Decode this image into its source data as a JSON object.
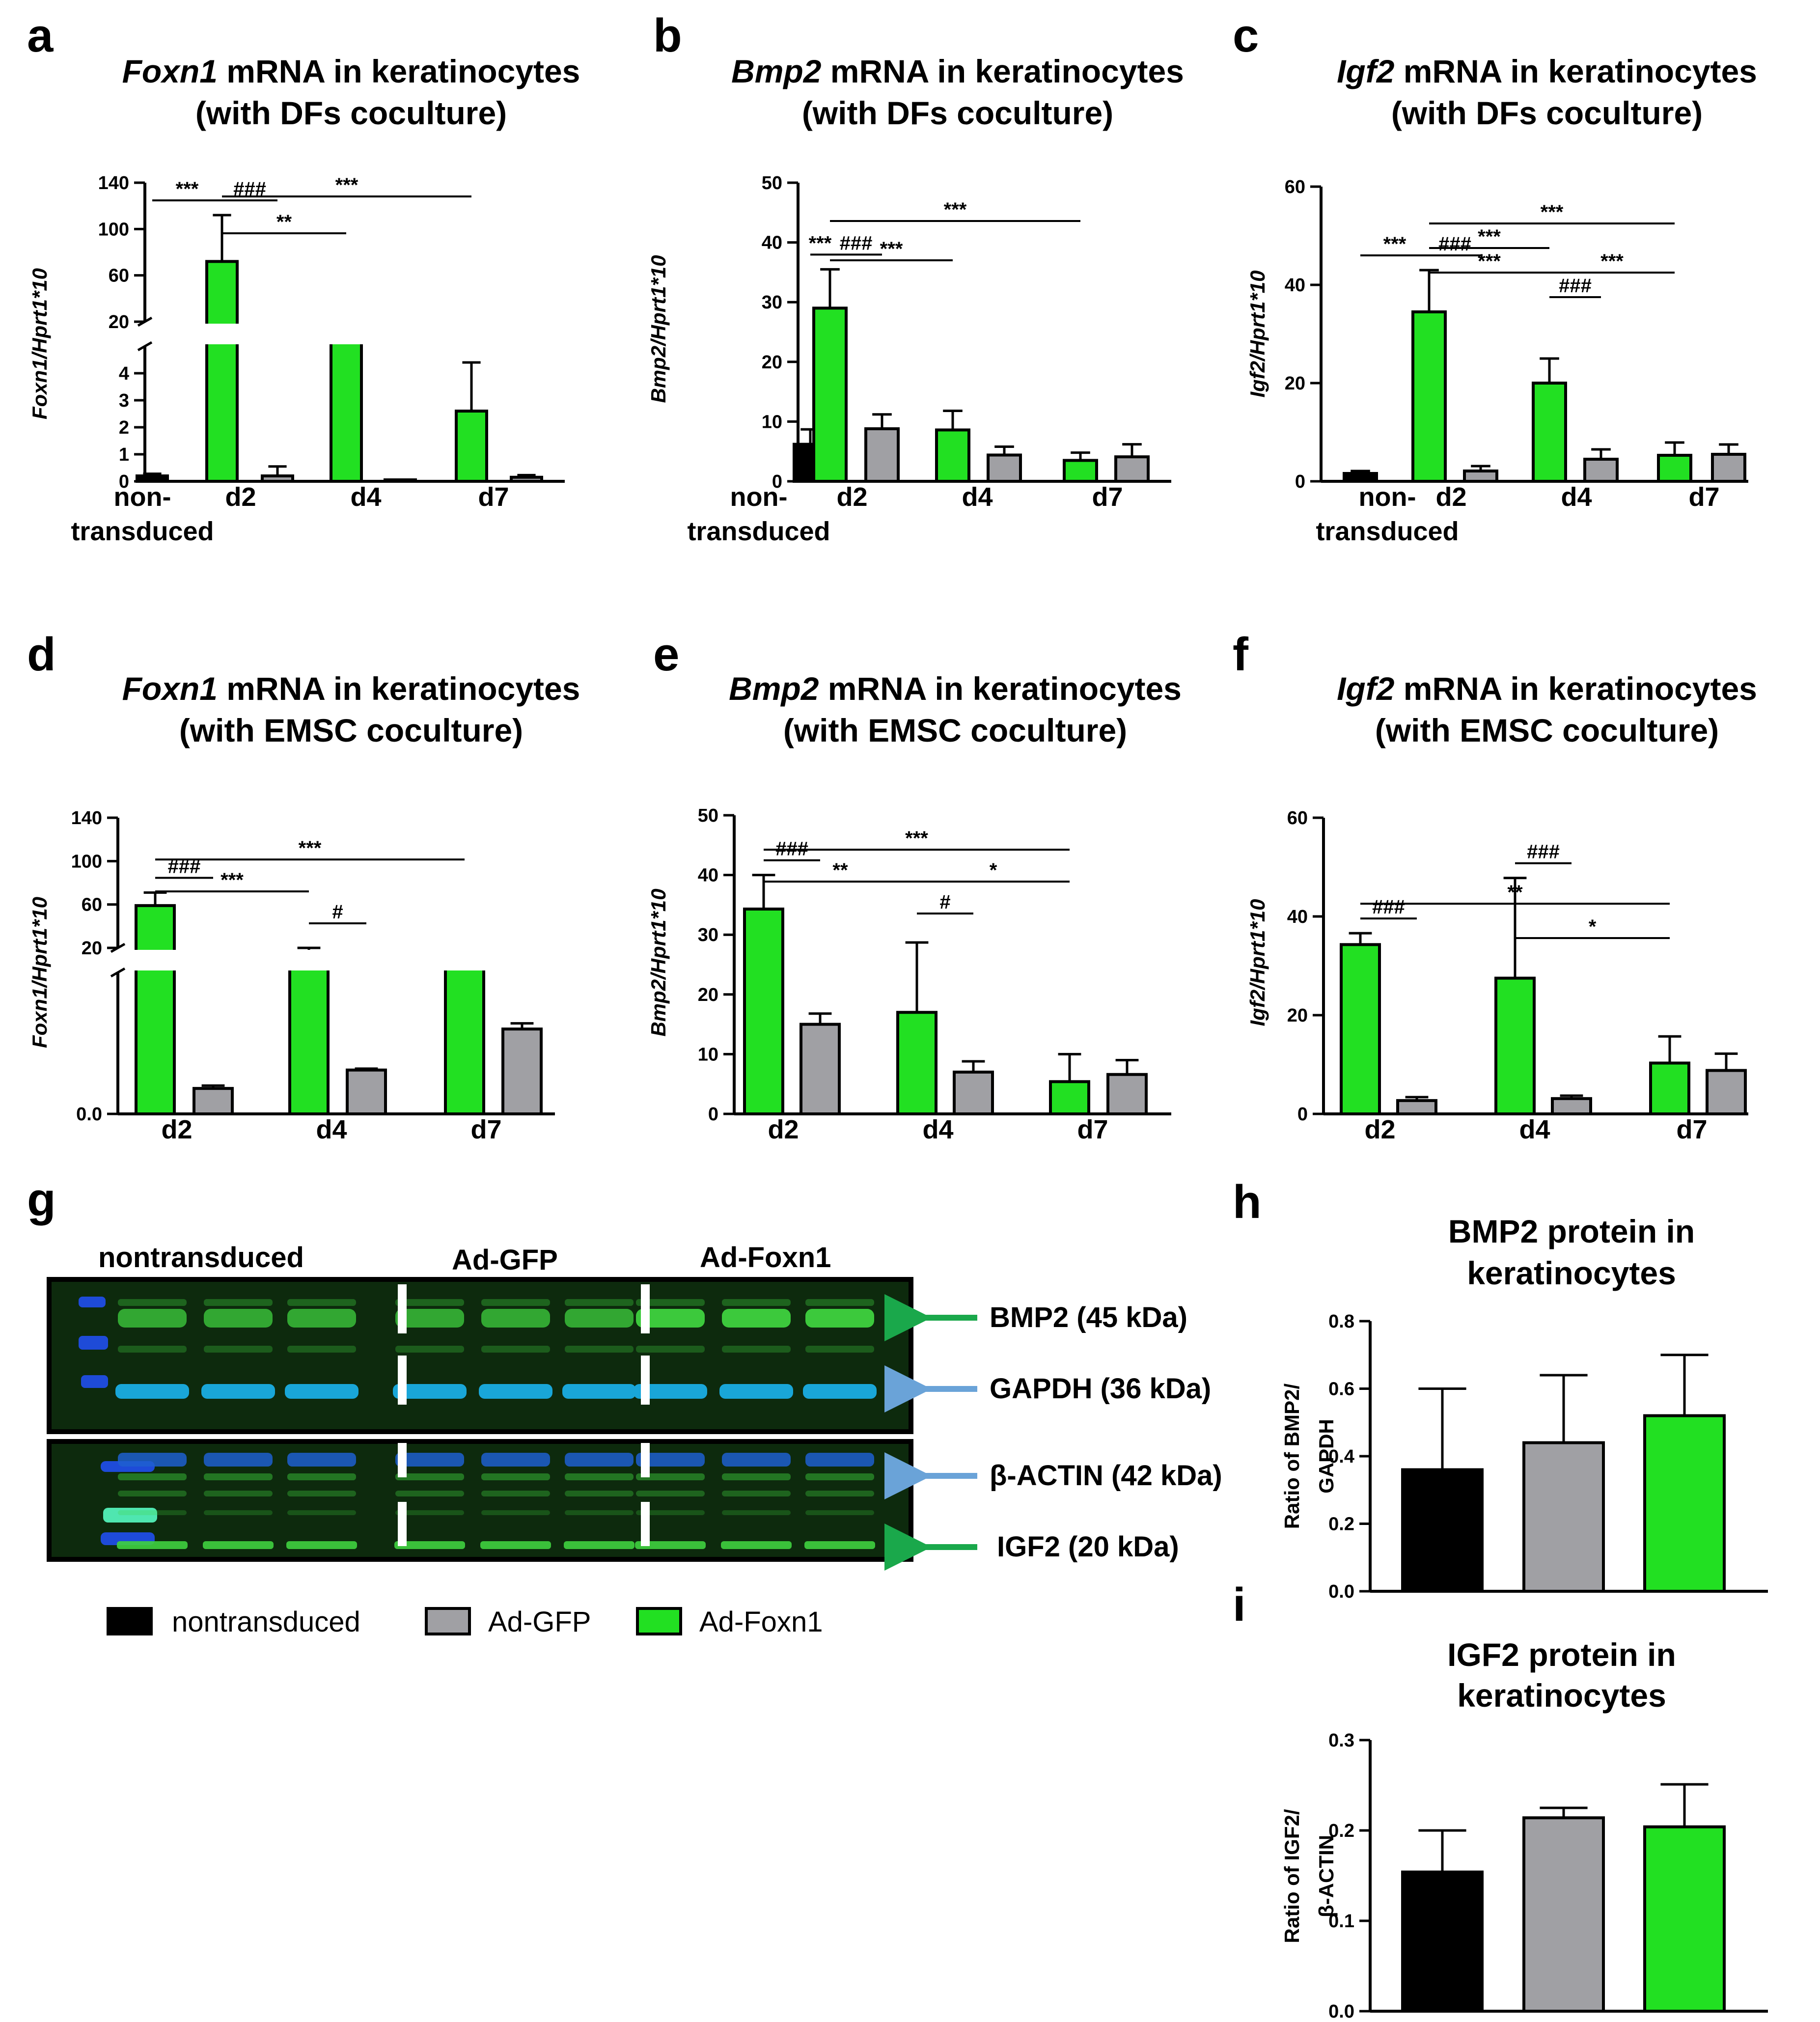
{
  "colors": {
    "nontransduced": "#000000",
    "ad_gfp": "#a0a0a4",
    "ad_foxn1": "#22e022",
    "green_arrow": "#1aa84b",
    "blue_arrow": "#6aa3d8",
    "blot_bg": "#0d2a0d",
    "band_green": "#3fd23f",
    "band_cyan": "#19a6d8",
    "ladder_blue": "#1e4bd8"
  },
  "legend": {
    "items": [
      {
        "label": "nontransduced",
        "color_key": "nontransduced"
      },
      {
        "label": "Ad-GFP",
        "color_key": "ad_gfp"
      },
      {
        "label": "Ad-Foxn1",
        "color_key": "ad_foxn1"
      }
    ]
  },
  "chart_data": [
    {
      "id": "a",
      "panel_label": "a",
      "type": "bar",
      "title_gene": "Foxn1",
      "title_rest": " mRNA in keratinocytes",
      "title_line2": "(with DFs coculture)",
      "ylabel": "Foxn1/Hprt1*10",
      "broken_axis": true,
      "ylim_lower": [
        0,
        5
      ],
      "ylim_upper": [
        0,
        140
      ],
      "yticks_lower": [
        0,
        1,
        2,
        3,
        4
      ],
      "yticks_upper": [
        20,
        60,
        100,
        140
      ],
      "ytick_labels_lower": [
        "0",
        "1",
        "2",
        "3",
        "4"
      ],
      "ytick_labels_upper": [
        "20",
        "60",
        "100",
        "140"
      ],
      "groups": [
        "non-\ntransduced",
        "d2",
        "d4",
        "d7"
      ],
      "group_labels": [
        [
          "non-",
          "transduced"
        ],
        [
          "d2"
        ],
        [
          "d4"
        ],
        [
          "d7"
        ]
      ],
      "bars": [
        {
          "group": 0,
          "series": "nontransduced",
          "value": 0.2,
          "error": 0.08
        },
        {
          "group": 1,
          "series": "ad_foxn1",
          "value": 72,
          "error": 40
        },
        {
          "group": 1,
          "series": "ad_gfp",
          "value": 0.2,
          "error": 0.35
        },
        {
          "group": 2,
          "series": "ad_foxn1",
          "value": 15,
          "error": 2
        },
        {
          "group": 2,
          "series": "ad_gfp",
          "value": 0.03,
          "error": 0.01
        },
        {
          "group": 3,
          "series": "ad_foxn1",
          "value": 2.6,
          "error": 1.8
        },
        {
          "group": 3,
          "series": "ad_gfp",
          "value": 0.15,
          "error": 0.08
        }
      ],
      "annotations": [
        {
          "from_bar": 0,
          "to_bar": 1,
          "label": "***",
          "level": 0
        },
        {
          "from_bar": 1,
          "to_bar": 2,
          "label": "###",
          "level": 0
        },
        {
          "from_bar": 1,
          "to_bar": 3,
          "label": "**",
          "level": 1
        },
        {
          "from_bar": 1,
          "to_bar": 5,
          "label": "***",
          "level": 2
        }
      ]
    },
    {
      "id": "b",
      "panel_label": "b",
      "type": "bar",
      "title_gene": "Bmp2",
      "title_rest": " mRNA in keratinocytes",
      "title_line2": "(with DFs coculture)",
      "ylabel": "Bmp2/Hprt1*10",
      "broken_axis": false,
      "ylim": [
        0,
        50
      ],
      "yticks": [
        0,
        10,
        20,
        30,
        40,
        50
      ],
      "ytick_labels": [
        "0",
        "10",
        "20",
        "30",
        "40",
        "50"
      ],
      "groups": [
        "non-\ntransduced",
        "d2",
        "d4",
        "d7"
      ],
      "group_labels": [
        [
          "non-",
          "transduced"
        ],
        [
          "d2"
        ],
        [
          "d4"
        ],
        [
          "d7"
        ]
      ],
      "bars": [
        {
          "group": 0,
          "series": "nontransduced",
          "value": 6.2,
          "error": 2.5
        },
        {
          "group": 1,
          "series": "ad_foxn1",
          "value": 29,
          "error": 6.5
        },
        {
          "group": 1,
          "series": "ad_gfp",
          "value": 8.8,
          "error": 2.4
        },
        {
          "group": 2,
          "series": "ad_foxn1",
          "value": 8.6,
          "error": 3.2
        },
        {
          "group": 2,
          "series": "ad_gfp",
          "value": 4.4,
          "error": 1.4
        },
        {
          "group": 3,
          "series": "ad_foxn1",
          "value": 3.5,
          "error": 1.3
        },
        {
          "group": 3,
          "series": "ad_gfp",
          "value": 4.1,
          "error": 2.1
        }
      ],
      "annotations": [
        {
          "from_bar": 0,
          "to_bar": 1,
          "label": "***",
          "level": 0
        },
        {
          "from_bar": 1,
          "to_bar": 2,
          "label": "###",
          "level": 0
        },
        {
          "from_bar": 1,
          "to_bar": 3,
          "label": "***",
          "level": 1
        },
        {
          "from_bar": 1,
          "to_bar": 5,
          "label": "***",
          "level": 2
        }
      ]
    },
    {
      "id": "c",
      "panel_label": "c",
      "type": "bar",
      "title_gene": "Igf2",
      "title_rest": " mRNA in keratinocytes",
      "title_line2": "(with DFs coculture)",
      "ylabel": "Igf2/Hprt1*10",
      "broken_axis": false,
      "ylim": [
        0,
        60
      ],
      "yticks": [
        0,
        20,
        40,
        60
      ],
      "ytick_labels": [
        "0",
        "20",
        "40",
        "60"
      ],
      "groups": [
        "non-\ntransduced",
        "d2",
        "d4",
        "d7"
      ],
      "group_labels": [
        [
          "non-",
          "transduced"
        ],
        [
          "d2"
        ],
        [
          "d4"
        ],
        [
          "d7"
        ]
      ],
      "bars": [
        {
          "group": 0,
          "series": "nontransduced",
          "value": 1.6,
          "error": 0.5
        },
        {
          "group": 1,
          "series": "ad_foxn1",
          "value": 34.5,
          "error": 8.5
        },
        {
          "group": 1,
          "series": "ad_gfp",
          "value": 2.1,
          "error": 1.0
        },
        {
          "group": 2,
          "series": "ad_foxn1",
          "value": 20,
          "error": 5
        },
        {
          "group": 2,
          "series": "ad_gfp",
          "value": 4.5,
          "error": 2.0
        },
        {
          "group": 3,
          "series": "ad_foxn1",
          "value": 5.3,
          "error": 2.6
        },
        {
          "group": 3,
          "series": "ad_gfp",
          "value": 5.5,
          "error": 2.0
        }
      ],
      "annotations": [
        {
          "from_bar": 0,
          "to_bar": 1,
          "label": "***",
          "level": 0
        },
        {
          "from_bar": 1,
          "to_bar": 2,
          "label": "###",
          "level": 0
        },
        {
          "from_bar": 1,
          "to_bar": 3,
          "label": "***",
          "level": 1
        },
        {
          "from_bar": 1,
          "to_bar": 3,
          "label": "***",
          "level": 2
        },
        {
          "from_bar": 1,
          "to_bar": 5,
          "label": "***",
          "level": 3
        },
        {
          "from_bar": 3,
          "to_bar": 4,
          "label": "###",
          "level": 0
        },
        {
          "from_bar": 3,
          "to_bar": 5,
          "label": "***",
          "level": 1
        }
      ]
    },
    {
      "id": "d",
      "panel_label": "d",
      "type": "bar",
      "title_gene": "Foxn1",
      "title_rest": " mRNA in keratinocytes",
      "title_line2": "(with EMSC coculture)",
      "ylabel": "Foxn1/Hprt1*10",
      "broken_axis": true,
      "ylim_lower": [
        0,
        1
      ],
      "ylim_upper": [
        0,
        140
      ],
      "yticks_lower": [
        0
      ],
      "yticks_upper": [
        20,
        60,
        100,
        140
      ],
      "ytick_labels_lower": [
        "0.0"
      ],
      "ytick_labels_upper": [
        "20",
        "60",
        "100",
        "140"
      ],
      "groups": [
        "d2",
        "d4",
        "d7"
      ],
      "group_labels": [
        [
          "d2"
        ],
        [
          "d4"
        ],
        [
          "d7"
        ]
      ],
      "bars": [
        {
          "group": 0,
          "series": "ad_foxn1",
          "value": 59,
          "error": 12
        },
        {
          "group": 0,
          "series": "ad_gfp",
          "value": 0.18,
          "error": 0.02
        },
        {
          "group": 1,
          "series": "ad_foxn1",
          "value": 13,
          "error": 7
        },
        {
          "group": 1,
          "series": "ad_gfp",
          "value": 0.31,
          "error": 0.01
        },
        {
          "group": 2,
          "series": "ad_foxn1",
          "value": 5.5,
          "error": 2.5
        },
        {
          "group": 2,
          "series": "ad_gfp",
          "value": 0.6,
          "error": 0.04
        }
      ],
      "annotations": [
        {
          "from_bar": 0,
          "to_bar": 1,
          "label": "###",
          "level": 0
        },
        {
          "from_bar": 0,
          "to_bar": 2,
          "label": "***",
          "level": 1
        },
        {
          "from_bar": 0,
          "to_bar": 4,
          "label": "***",
          "level": 2
        },
        {
          "from_bar": 2,
          "to_bar": 3,
          "label": "#",
          "level": 0
        }
      ]
    },
    {
      "id": "e",
      "panel_label": "e",
      "type": "bar",
      "title_gene": "Bmp2",
      "title_rest": " mRNA in keratinocytes",
      "title_line2": "(with EMSC coculture)",
      "ylabel": "Bmp2/Hprt1*10",
      "broken_axis": false,
      "ylim": [
        0,
        50
      ],
      "yticks": [
        0,
        10,
        20,
        30,
        40,
        50
      ],
      "ytick_labels": [
        "0",
        "10",
        "20",
        "30",
        "40",
        "50"
      ],
      "groups": [
        "d2",
        "d4",
        "d7"
      ],
      "group_labels": [
        [
          "d2"
        ],
        [
          "d4"
        ],
        [
          "d7"
        ]
      ],
      "bars": [
        {
          "group": 0,
          "series": "ad_foxn1",
          "value": 34.3,
          "error": 5.7
        },
        {
          "group": 0,
          "series": "ad_gfp",
          "value": 15,
          "error": 1.8
        },
        {
          "group": 1,
          "series": "ad_foxn1",
          "value": 17,
          "error": 11.7
        },
        {
          "group": 1,
          "series": "ad_gfp",
          "value": 7,
          "error": 1.8
        },
        {
          "group": 2,
          "series": "ad_foxn1",
          "value": 5.4,
          "error": 4.6
        },
        {
          "group": 2,
          "series": "ad_gfp",
          "value": 6.6,
          "error": 2.4
        }
      ],
      "annotations": [
        {
          "from_bar": 0,
          "to_bar": 1,
          "label": "###",
          "level": 0
        },
        {
          "from_bar": 0,
          "to_bar": 2,
          "label": "**",
          "level": 1
        },
        {
          "from_bar": 0,
          "to_bar": 4,
          "label": "***",
          "level": 2
        },
        {
          "from_bar": 2,
          "to_bar": 3,
          "label": "#",
          "level": 0
        },
        {
          "from_bar": 2,
          "to_bar": 4,
          "label": "*",
          "level": 1
        }
      ]
    },
    {
      "id": "f",
      "panel_label": "f",
      "type": "bar",
      "title_gene": "Igf2",
      "title_rest": " mRNA in keratinocytes",
      "title_line2": "(with EMSC coculture)",
      "ylabel": "Igf2/Hprt1*10",
      "broken_axis": false,
      "ylim": [
        0,
        60
      ],
      "yticks": [
        0,
        20,
        40,
        60
      ],
      "ytick_labels": [
        "0",
        "20",
        "40",
        "60"
      ],
      "groups": [
        "d2",
        "d4",
        "d7"
      ],
      "group_labels": [
        [
          "d2"
        ],
        [
          "d4"
        ],
        [
          "d7"
        ]
      ],
      "bars": [
        {
          "group": 0,
          "series": "ad_foxn1",
          "value": 34.3,
          "error": 2.3
        },
        {
          "group": 0,
          "series": "ad_gfp",
          "value": 2.7,
          "error": 0.7
        },
        {
          "group": 1,
          "series": "ad_foxn1",
          "value": 27.5,
          "error": 20.3
        },
        {
          "group": 1,
          "series": "ad_gfp",
          "value": 3.1,
          "error": 0.6
        },
        {
          "group": 2,
          "series": "ad_foxn1",
          "value": 10.3,
          "error": 5.4
        },
        {
          "group": 2,
          "series": "ad_gfp",
          "value": 8.8,
          "error": 3.4
        }
      ],
      "annotations": [
        {
          "from_bar": 0,
          "to_bar": 1,
          "label": "###",
          "level": 0
        },
        {
          "from_bar": 0,
          "to_bar": 4,
          "label": "**",
          "level": 2
        },
        {
          "from_bar": 2,
          "to_bar": 3,
          "label": "###",
          "level": 0
        },
        {
          "from_bar": 2,
          "to_bar": 4,
          "label": "*",
          "level": 1
        }
      ]
    },
    {
      "id": "h",
      "panel_label": "h",
      "type": "bar",
      "title_line1": "BMP2 protein in",
      "title_line2": "keratinocytes",
      "ylabel_lines": [
        "Ratio of BMP2/",
        "GAPDH"
      ],
      "ylim": [
        0,
        0.8
      ],
      "yticks": [
        0,
        0.2,
        0.4,
        0.6,
        0.8
      ],
      "ytick_labels": [
        "0.0",
        "0.2",
        "0.4",
        "0.6",
        "0.8"
      ],
      "categories": [
        "nontransduced",
        "Ad-GFP",
        "Ad-Foxn1"
      ],
      "bars": [
        {
          "series": "nontransduced",
          "value": 0.36,
          "error": 0.24
        },
        {
          "series": "ad_gfp",
          "value": 0.44,
          "error": 0.2
        },
        {
          "series": "ad_foxn1",
          "value": 0.52,
          "error": 0.18
        }
      ]
    },
    {
      "id": "i",
      "panel_label": "i",
      "type": "bar",
      "title_line1": "IGF2 protein in",
      "title_line2": "keratinocytes",
      "ylabel_lines": [
        "Ratio of IGF2/",
        "β-ACTIN"
      ],
      "ylim": [
        0,
        0.3
      ],
      "yticks": [
        0,
        0.1,
        0.2,
        0.3
      ],
      "ytick_labels": [
        "0.0",
        "0.1",
        "0.2",
        "0.3"
      ],
      "categories": [
        "nontransduced",
        "Ad-GFP",
        "Ad-Foxn1"
      ],
      "bars": [
        {
          "series": "nontransduced",
          "value": 0.154,
          "error": 0.046
        },
        {
          "series": "ad_gfp",
          "value": 0.214,
          "error": 0.011
        },
        {
          "series": "ad_foxn1",
          "value": 0.204,
          "error": 0.047
        }
      ]
    }
  ],
  "western_blot": {
    "panel_label": "g",
    "group_labels": [
      "nontransduced",
      "Ad-GFP",
      "Ad-Foxn1"
    ],
    "bands": [
      {
        "label": "BMP2 (45 kDa)",
        "arrow": "green"
      },
      {
        "label": "GAPDH (36 kDa)",
        "arrow": "blue"
      },
      {
        "label": "β-ACTIN (42 kDa)",
        "arrow": "blue"
      },
      {
        "label": "IGF2 (20 kDa)",
        "arrow": "green"
      }
    ]
  }
}
